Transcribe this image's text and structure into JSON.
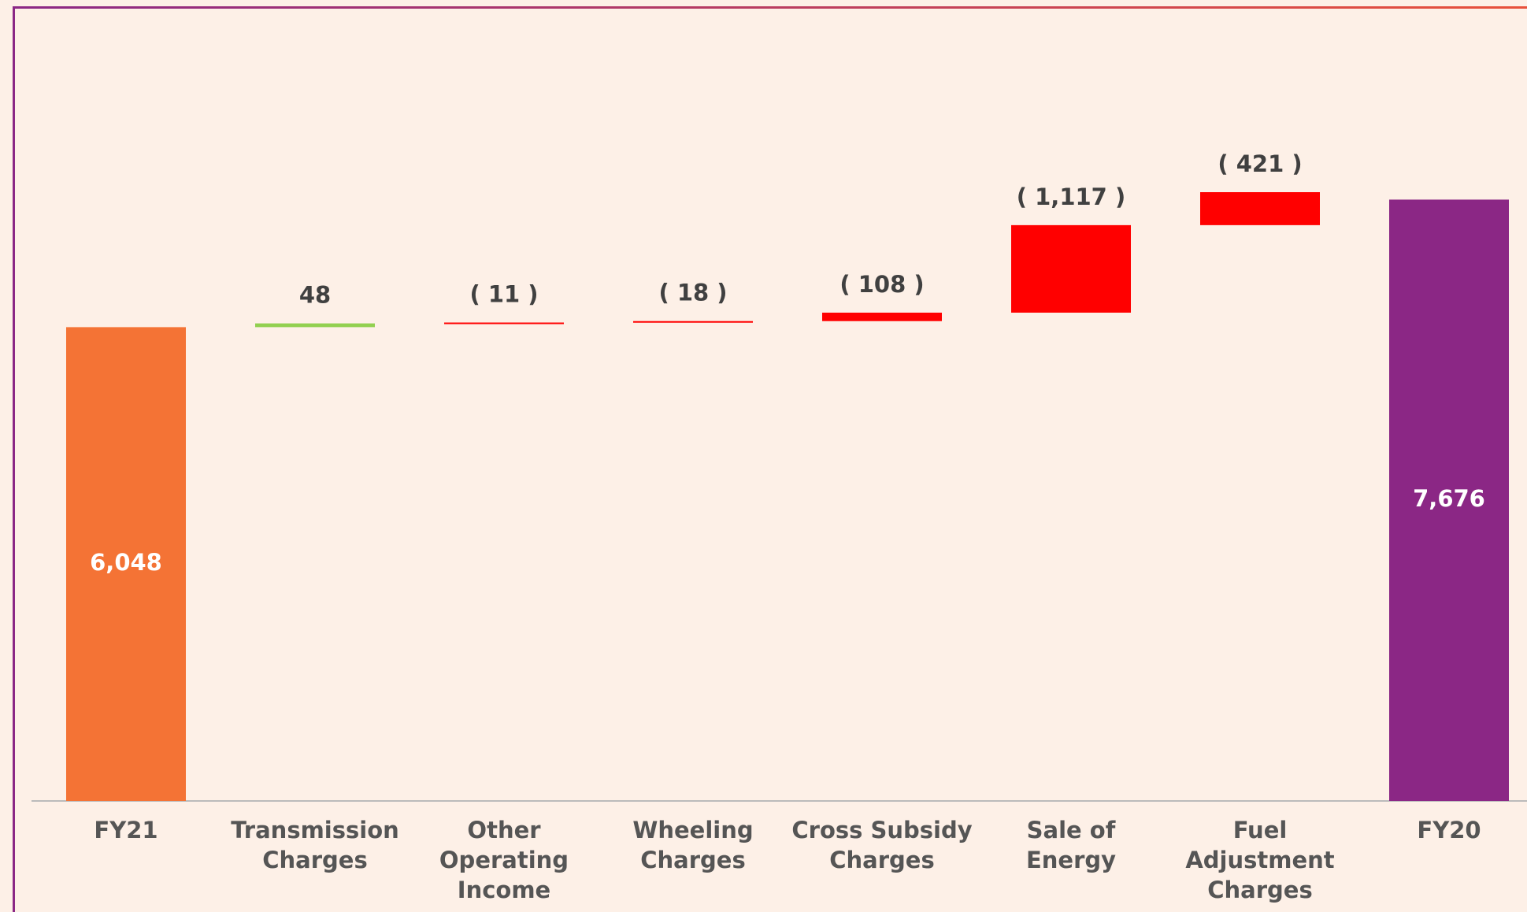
{
  "chart_data": {
    "type": "waterfall",
    "categories": [
      "FY21",
      "Transmission Charges",
      "Other Operating Income",
      "Wheeling Charges",
      "Cross Subsidy Charges",
      "Sale of Energy",
      "Fuel Adjustment Charges",
      "FY20"
    ],
    "values": [
      6048,
      48,
      -11,
      -18,
      -108,
      -1117,
      -421,
      7676
    ],
    "value_labels": [
      "6,048",
      "48",
      "( 11 )",
      "( 18 )",
      "( 108 )",
      "( 1,117 )",
      "( 421 )",
      "7,676"
    ],
    "kinds": [
      "total",
      "delta",
      "delta",
      "delta",
      "delta",
      "delta",
      "delta",
      "total"
    ],
    "colors": {
      "start": "#f47335",
      "increase": "#92d050",
      "decrease": "#ff0000",
      "end": "#8b2785"
    }
  }
}
